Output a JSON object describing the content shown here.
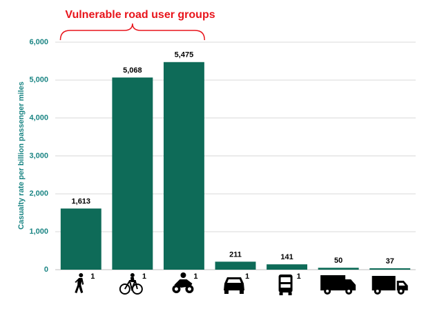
{
  "chart_data": {
    "type": "bar",
    "y_label": "Casualty rate per billion passenger miles",
    "annotation": "Vulnerable road user groups",
    "categories": [
      "1",
      "1",
      "1",
      "1",
      "1",
      null,
      null
    ],
    "values": [
      1613,
      5068,
      5475,
      211,
      141,
      50,
      37
    ],
    "value_labels": [
      "1,613",
      "5,068",
      "5,475",
      "211",
      "141",
      "50",
      "37"
    ],
    "color": "#0e6b58",
    "ylim": [
      0,
      6000
    ],
    "yticks": [
      0,
      {
        "value": 1000,
        "label": "1,000"
      },
      {
        "value": 2000,
        "label": "2,000"
      },
      {
        "value": 3000,
        "label": "3,000"
      },
      {
        "value": 4000,
        "label": "4,000"
      },
      {
        "value": 5000,
        "label": "5,000"
      },
      {
        "value": 6000,
        "label": "6,000"
      }
    ],
    "grid": true
  }
}
